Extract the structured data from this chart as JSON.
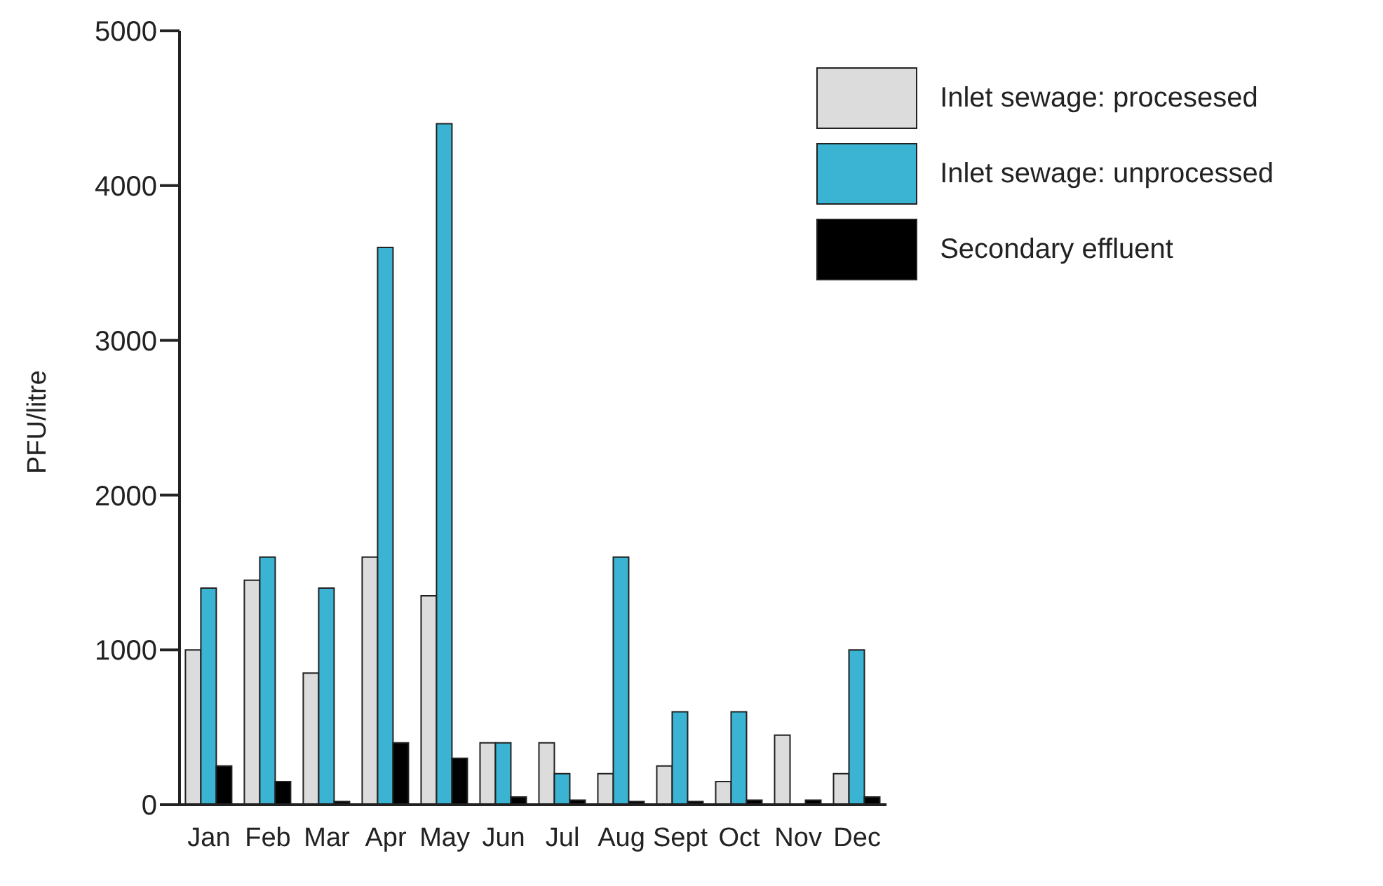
{
  "chart_data": {
    "type": "bar",
    "ylabel": "PFU/litre",
    "categories": [
      "Jan",
      "Feb",
      "Mar",
      "Apr",
      "May",
      "Jun",
      "Jul",
      "Aug",
      "Sept",
      "Oct",
      "Nov",
      "Dec"
    ],
    "series": [
      {
        "name": "Inlet sewage: procesesed",
        "color": "#dcdcdc",
        "values": [
          1000,
          1450,
          850,
          1600,
          1350,
          400,
          400,
          200,
          250,
          150,
          450,
          200
        ]
      },
      {
        "name": "Inlet sewage: unprocessed",
        "color": "#3ab4d2",
        "values": [
          1400,
          1600,
          1400,
          3600,
          4400,
          400,
          200,
          1600,
          600,
          600,
          0,
          1000
        ]
      },
      {
        "name": "Secondary effluent",
        "color": "#000000",
        "values": [
          250,
          150,
          20,
          400,
          300,
          50,
          30,
          20,
          20,
          30,
          30,
          50
        ]
      }
    ],
    "ylim": [
      0,
      5000
    ],
    "yticks": [
      0,
      1000,
      2000,
      3000,
      4000,
      5000
    ],
    "grid": false,
    "legend": "top right"
  }
}
